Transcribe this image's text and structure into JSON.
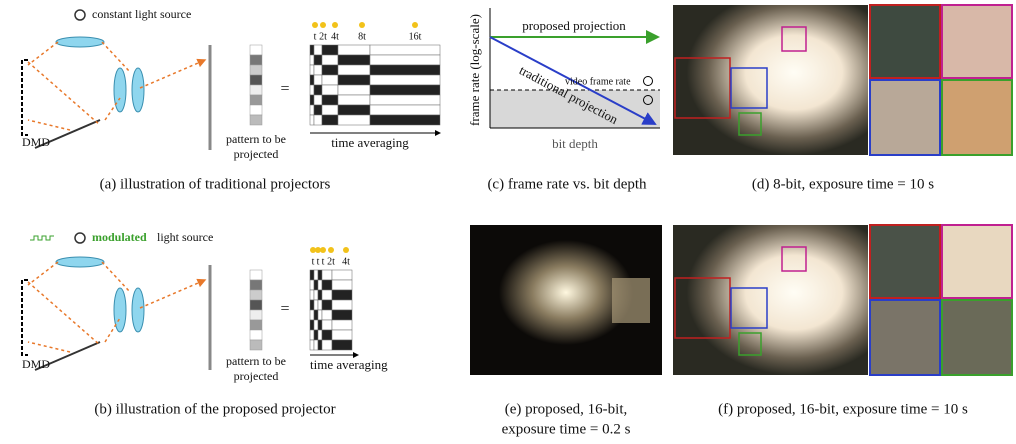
{
  "panels": {
    "a": {
      "source_label": "constant light source",
      "dmd": "DMD",
      "pattern_lines": [
        "pattern to be",
        "projected"
      ],
      "equals": "=",
      "time_labels": [
        "t",
        "2t",
        "4t",
        "8t",
        "16t"
      ],
      "axis_label": "time averaging",
      "caption": "(a) illustration of traditional projectors"
    },
    "b": {
      "source_highlight": "modulated",
      "source_label": "light source",
      "dmd": "DMD",
      "pattern_lines": [
        "pattern to be",
        "projected"
      ],
      "equals": "=",
      "time_labels": [
        "t",
        "t",
        "t",
        "2t",
        "4t"
      ],
      "axis_label": "time averaging",
      "caption": "(b) illustration of the proposed projector"
    },
    "c": {
      "proposed": "proposed projection",
      "traditional": "traditional projection",
      "video_rate": "video frame rate",
      "y_label": "frame rate (log-scale)",
      "x_label": "bit depth",
      "caption": "(c) frame rate vs. bit depth"
    },
    "d": {
      "caption": "(d) 8-bit, exposure time = 10 s"
    },
    "e": {
      "caption_lines": [
        "(e) proposed,   16-bit,",
        "exposure time = 0.2 s"
      ]
    },
    "f": {
      "caption": "(f) proposed, 16-bit, exposure time = 10 s"
    }
  }
}
